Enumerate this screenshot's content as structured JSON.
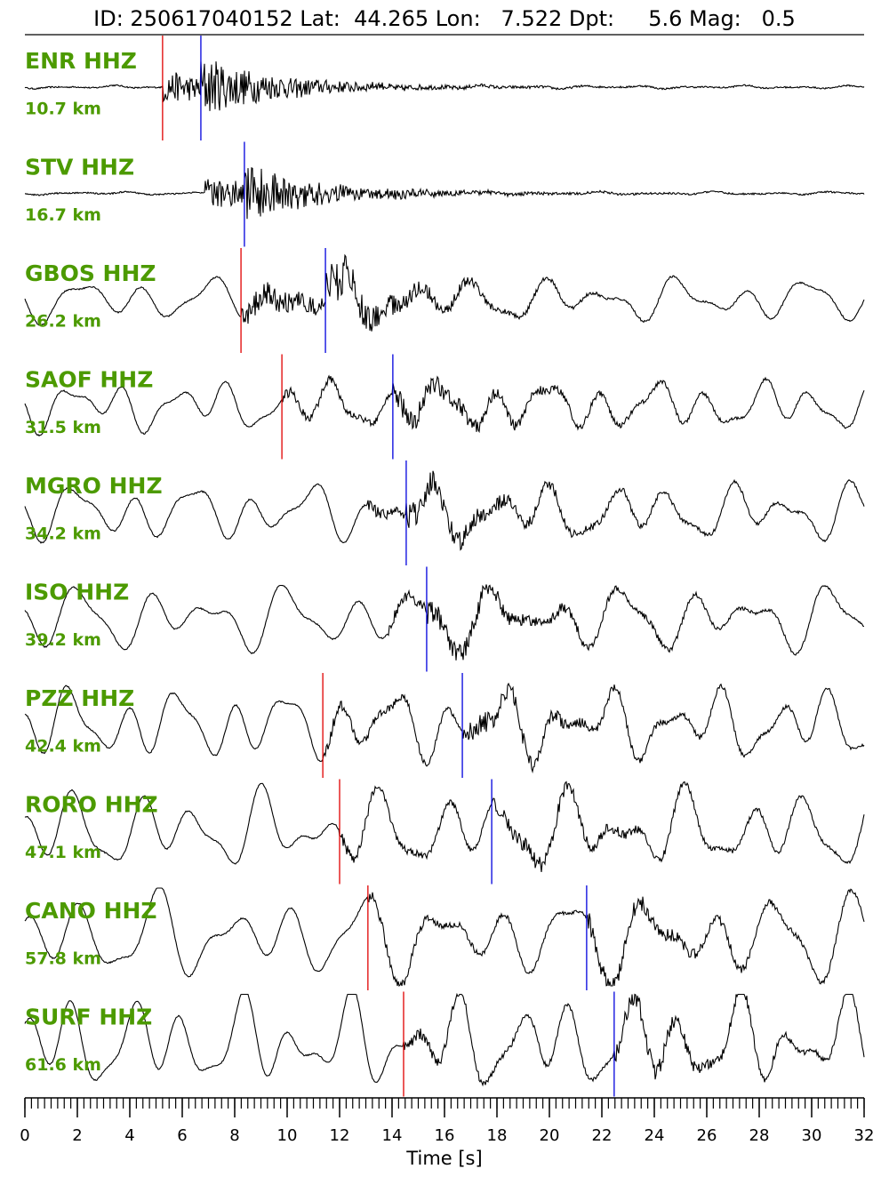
{
  "chart_data": {
    "type": "seismogram",
    "title": "ID: 250617040152 Lat:  44.265 Lon:   7.522 Dpt:     5.6 Mag:   0.5",
    "xlabel": "Time [s]",
    "xlim": [
      0,
      32
    ],
    "xticks": [
      0,
      2,
      4,
      6,
      8,
      10,
      12,
      14,
      16,
      18,
      20,
      22,
      24,
      26,
      28,
      30,
      32
    ],
    "minor_step": 0.25,
    "p_color": "#e00000",
    "s_color": "#0000dd",
    "traces": [
      {
        "name": "ENR HHZ",
        "distance": "10.7 km",
        "p_pick": 5.25,
        "s_pick": 6.71
      },
      {
        "name": "STV HHZ",
        "distance": "16.7 km",
        "p_pick": null,
        "s_pick": 8.37
      },
      {
        "name": "GBOS HHZ",
        "distance": "26.2 km",
        "p_pick": 8.24,
        "s_pick": 11.46
      },
      {
        "name": "SAOF HHZ",
        "distance": "31.5 km",
        "p_pick": 9.8,
        "s_pick": 14.03
      },
      {
        "name": "MGRO HHZ",
        "distance": "34.2 km",
        "p_pick": null,
        "s_pick": 14.54
      },
      {
        "name": "ISO HHZ",
        "distance": "39.2 km",
        "p_pick": null,
        "s_pick": 15.32
      },
      {
        "name": "PZZ HHZ",
        "distance": "42.4 km",
        "p_pick": 11.36,
        "s_pick": 16.68
      },
      {
        "name": "RORO HHZ",
        "distance": "47.1 km",
        "p_pick": 12.0,
        "s_pick": 17.8
      },
      {
        "name": "CANO HHZ",
        "distance": "57.8 km",
        "p_pick": 13.08,
        "s_pick": 21.42
      },
      {
        "name": "SURF HHZ",
        "distance": "61.6 km",
        "p_pick": 14.44,
        "s_pick": 22.47
      }
    ]
  }
}
